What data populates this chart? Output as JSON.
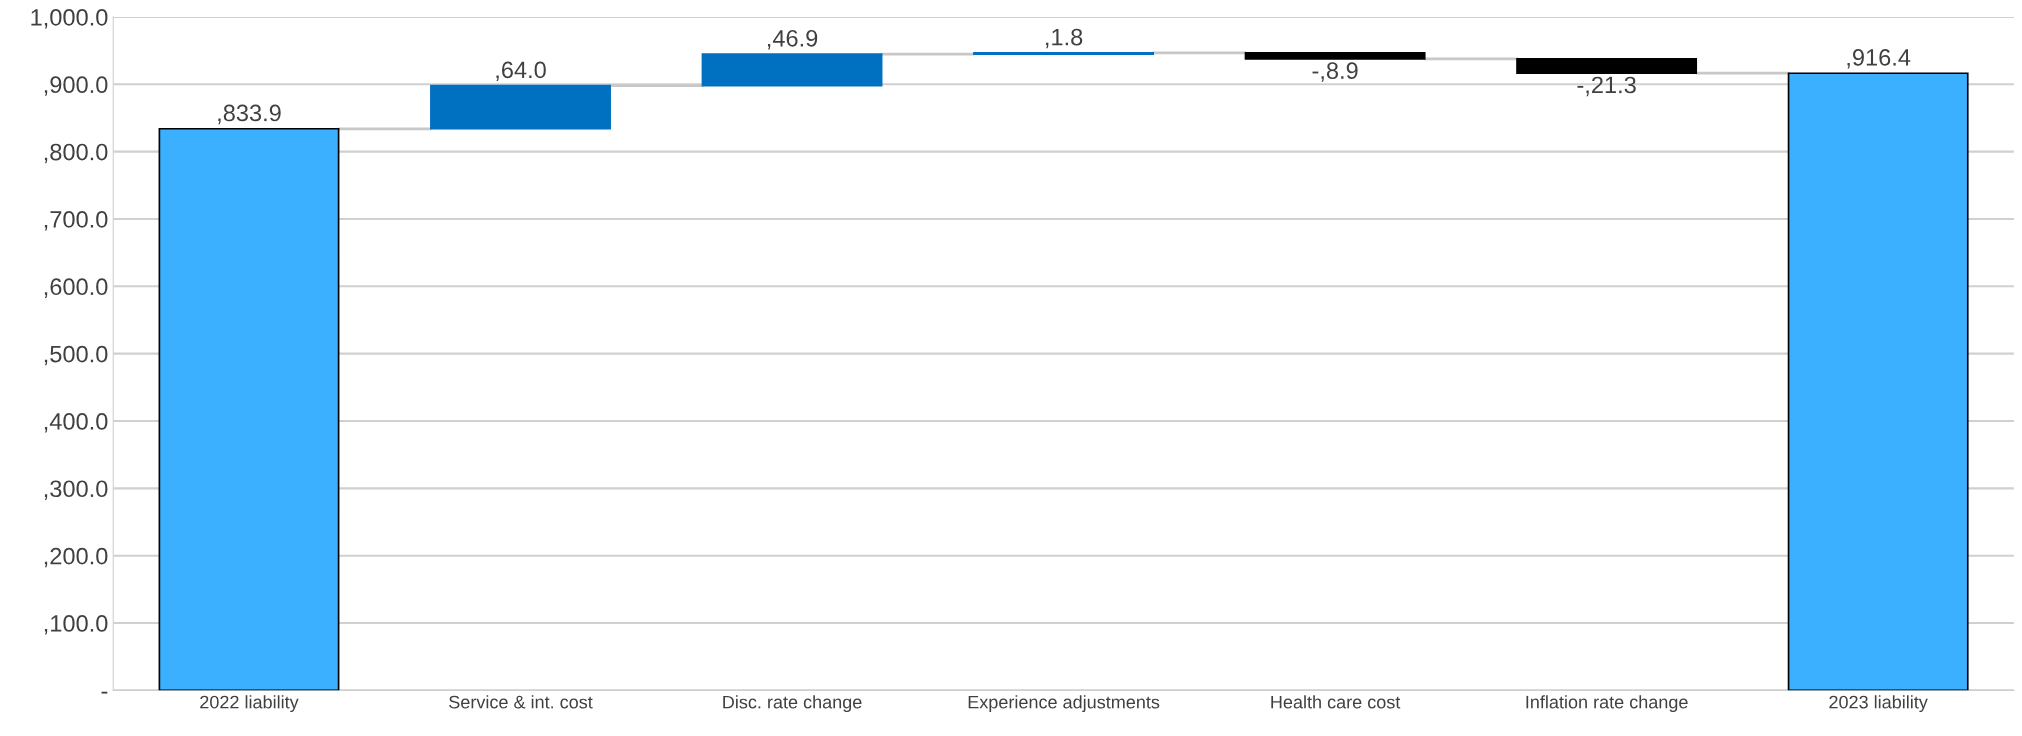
{
  "chart_data": {
    "type": "bar",
    "categories": [
      "2022 liability",
      "Service & int. cost",
      "Disc. rate change",
      "Experience adjustments",
      "Health care cost",
      "Inflation rate change",
      "2023 liability"
    ],
    "values": [
      833.9,
      64.0,
      46.9,
      1.8,
      -8.9,
      -21.3,
      916.4
    ],
    "base": [
      0,
      833.9,
      897.9,
      944.8,
      946.6,
      937.7,
      0
    ],
    "colors": [
      "#3bb0ff",
      "#0070c0",
      "#0070c0",
      "#0070c0",
      "#000000",
      "#000000",
      "#3bb0ff"
    ],
    "value_labels": [
      ",833.9",
      ",64.0",
      ",46.9",
      ",1.8",
      "-,8.9",
      "-,21.3",
      ",916.4"
    ],
    "ylim": [
      0,
      1000
    ],
    "yticks": [
      {
        "value": 0,
        "label": "-"
      },
      {
        "value": 100,
        "label": ",100.0"
      },
      {
        "value": 200,
        "label": ",200.0"
      },
      {
        "value": 300,
        "label": ",300.0"
      },
      {
        "value": 400,
        "label": ",400.0"
      },
      {
        "value": 500,
        "label": ",500.0"
      },
      {
        "value": 600,
        "label": ",600.0"
      },
      {
        "value": 700,
        "label": ",700.0"
      },
      {
        "value": 800,
        "label": ",800.0"
      },
      {
        "value": 900,
        "label": ",900.0"
      },
      {
        "value": 1000,
        "label": "1,000.0"
      }
    ],
    "grid": "y"
  }
}
